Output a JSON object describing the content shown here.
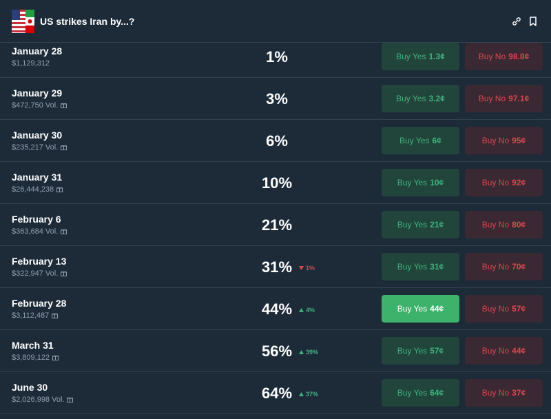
{
  "header": {
    "title": "US strikes Iran by...?"
  },
  "rows": [
    {
      "date": "January 28",
      "volume": "$1,129,312",
      "gift_icon": false,
      "probability": "1%",
      "change": null,
      "highlighted": false,
      "yes": {
        "label": "Buy Yes",
        "price": "1.3¢"
      },
      "no": {
        "label": "Buy No",
        "price": "98.8¢"
      }
    },
    {
      "date": "January 29",
      "volume": "$472,750 Vol.",
      "gift_icon": true,
      "probability": "3%",
      "change": null,
      "highlighted": false,
      "yes": {
        "label": "Buy Yes",
        "price": "3.2¢"
      },
      "no": {
        "label": "Buy No",
        "price": "97.1¢"
      }
    },
    {
      "date": "January 30",
      "volume": "$235,217 Vol.",
      "gift_icon": true,
      "probability": "6%",
      "change": null,
      "highlighted": false,
      "yes": {
        "label": "Buy Yes",
        "price": "6¢"
      },
      "no": {
        "label": "Buy No",
        "price": "95¢"
      }
    },
    {
      "date": "January 31",
      "volume": "$26,444,238",
      "gift_icon": true,
      "probability": "10%",
      "change": null,
      "highlighted": false,
      "yes": {
        "label": "Buy Yes",
        "price": "10¢"
      },
      "no": {
        "label": "Buy No",
        "price": "92¢"
      }
    },
    {
      "date": "February 6",
      "volume": "$363,684 Vol.",
      "gift_icon": true,
      "probability": "21%",
      "change": null,
      "highlighted": false,
      "yes": {
        "label": "Buy Yes",
        "price": "21¢"
      },
      "no": {
        "label": "Buy No",
        "price": "80¢"
      }
    },
    {
      "date": "February 13",
      "volume": "$322,947 Vol.",
      "gift_icon": true,
      "probability": "31%",
      "change": {
        "text": "1%",
        "direction": "down"
      },
      "highlighted": false,
      "yes": {
        "label": "Buy Yes",
        "price": "31¢"
      },
      "no": {
        "label": "Buy No",
        "price": "70¢"
      }
    },
    {
      "date": "February 28",
      "volume": "$3,112,487",
      "gift_icon": true,
      "probability": "44%",
      "change": {
        "text": "4%",
        "direction": "up"
      },
      "highlighted": true,
      "yes": {
        "label": "Buy Yes",
        "price": "44¢"
      },
      "no": {
        "label": "Buy No",
        "price": "57¢"
      }
    },
    {
      "date": "March 31",
      "volume": "$3,809,122",
      "gift_icon": true,
      "probability": "56%",
      "change": {
        "text": "39%",
        "direction": "up"
      },
      "highlighted": false,
      "yes": {
        "label": "Buy Yes",
        "price": "57¢"
      },
      "no": {
        "label": "Buy No",
        "price": "44¢"
      }
    },
    {
      "date": "June 30",
      "volume": "$2,026,998 Vol.",
      "gift_icon": true,
      "probability": "64%",
      "change": {
        "text": "37%",
        "direction": "up"
      },
      "highlighted": false,
      "yes": {
        "label": "Buy Yes",
        "price": "64¢"
      },
      "no": {
        "label": "Buy No",
        "price": "37¢"
      }
    }
  ]
}
